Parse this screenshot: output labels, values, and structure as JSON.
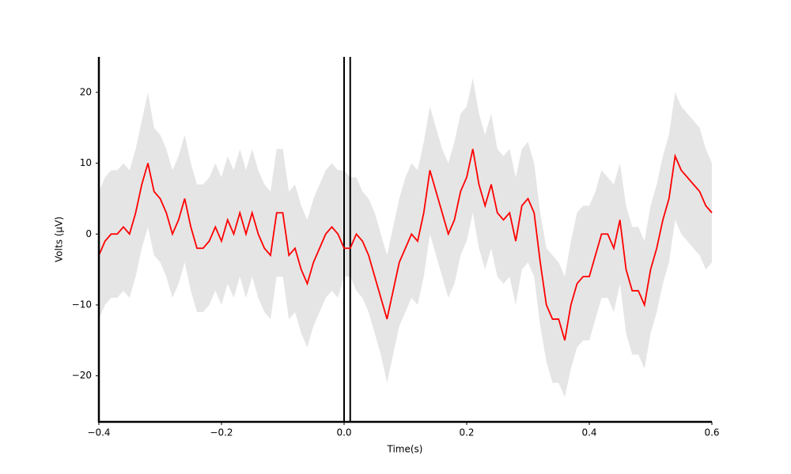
{
  "chart_data": {
    "type": "line",
    "xlabel": "Time(s)",
    "ylabel": "Volts (μV)",
    "x": [
      -0.4,
      -0.39,
      -0.38,
      -0.37,
      -0.36,
      -0.35,
      -0.34,
      -0.33,
      -0.32,
      -0.31,
      -0.3,
      -0.29,
      -0.28,
      -0.27,
      -0.26,
      -0.25,
      -0.24,
      -0.23,
      -0.22,
      -0.21,
      -0.2,
      -0.19,
      -0.18,
      -0.17,
      -0.16,
      -0.15,
      -0.14,
      -0.13,
      -0.12,
      -0.11,
      -0.1,
      -0.09,
      -0.08,
      -0.07,
      -0.06,
      -0.05,
      -0.04,
      -0.03,
      -0.02,
      -0.01,
      0,
      0.01,
      0.02,
      0.03,
      0.04,
      0.05,
      0.06,
      0.07,
      0.08,
      0.09,
      0.1,
      0.11,
      0.12,
      0.13,
      0.14,
      0.15,
      0.16,
      0.17,
      0.18,
      0.19,
      0.2,
      0.21,
      0.22,
      0.23,
      0.24,
      0.25,
      0.26,
      0.27,
      0.28,
      0.29,
      0.3,
      0.31,
      0.32,
      0.33,
      0.34,
      0.35,
      0.36,
      0.37,
      0.38,
      0.39,
      0.4,
      0.41,
      0.42,
      0.43,
      0.44,
      0.45,
      0.46,
      0.47,
      0.48,
      0.49,
      0.5,
      0.51,
      0.52,
      0.53,
      0.54,
      0.55,
      0.56,
      0.57,
      0.58,
      0.59,
      0.6
    ],
    "values": [
      -3,
      -1,
      0,
      0,
      1,
      0,
      3,
      7,
      10,
      6,
      5,
      3,
      0,
      2,
      5,
      1,
      -2,
      -2,
      -1,
      1,
      -1,
      2,
      0,
      3,
      0,
      3,
      0,
      -2,
      -3,
      3,
      3,
      -3,
      -2,
      -5,
      -7,
      -4,
      -2,
      0,
      1,
      0,
      -2,
      -2,
      0,
      -1,
      -3,
      -6,
      -9,
      -12,
      -8,
      -4,
      -2,
      0,
      -1,
      3,
      9,
      6,
      3,
      0,
      2,
      6,
      8,
      12,
      7,
      4,
      7,
      3,
      2,
      3,
      -1,
      4,
      5,
      3,
      -4,
      -10,
      -12,
      -12,
      -15,
      -10,
      -7,
      -6,
      -6,
      -3,
      0,
      0,
      -2,
      2,
      -5,
      -8,
      -8,
      -10,
      -5,
      -2,
      2,
      5,
      11,
      9,
      8,
      7,
      6,
      4,
      3
    ],
    "band_upper": [
      6,
      8,
      9,
      9,
      10,
      9,
      12,
      16,
      20,
      15,
      14,
      12,
      9,
      11,
      14,
      10,
      7,
      7,
      8,
      10,
      8,
      11,
      9,
      12,
      9,
      12,
      9,
      7,
      6,
      12,
      12,
      6,
      7,
      4,
      2,
      5,
      7,
      9,
      10,
      9,
      9,
      8,
      8,
      6,
      5,
      3,
      0,
      -3,
      1,
      5,
      8,
      10,
      9,
      13,
      18,
      15,
      12,
      10,
      13,
      17,
      18,
      22,
      17,
      14,
      17,
      12,
      11,
      12,
      8,
      12,
      13,
      10,
      3,
      -2,
      -3,
      -4,
      -6,
      -1,
      3,
      4,
      4,
      6,
      9,
      8,
      7,
      10,
      4,
      1,
      1,
      -1,
      4,
      7,
      11,
      14,
      20,
      18,
      17,
      16,
      15,
      12,
      10
    ],
    "band_lower": [
      -12,
      -10,
      -9,
      -9,
      -8,
      -9,
      -6,
      -2,
      1,
      -3,
      -4,
      -6,
      -9,
      -7,
      -4,
      -8,
      -11,
      -11,
      -10,
      -8,
      -10,
      -7,
      -9,
      -6,
      -9,
      -6,
      -9,
      -11,
      -12,
      -6,
      -6,
      -12,
      -11,
      -14,
      -16,
      -13,
      -11,
      -9,
      -8,
      -9,
      -6,
      -6,
      -8,
      -9,
      -11,
      -14,
      -17,
      -21,
      -17,
      -13,
      -11,
      -9,
      -10,
      -6,
      0,
      -3,
      -6,
      -9,
      -7,
      -3,
      -1,
      3,
      -2,
      -5,
      -2,
      -6,
      -7,
      -6,
      -10,
      -5,
      -4,
      -6,
      -13,
      -18,
      -21,
      -21,
      -23,
      -19,
      -16,
      -15,
      -15,
      -12,
      -9,
      -9,
      -11,
      -7,
      -14,
      -17,
      -17,
      -19,
      -14,
      -11,
      -7,
      -4,
      2,
      0,
      -1,
      -2,
      -3,
      -5,
      -4
    ],
    "color": "#ff0000",
    "band_color": "#e5e5e5",
    "vlines": [
      0,
      0.01
    ],
    "xlim": [
      -0.4,
      0.6
    ],
    "ylim": [
      -26.5,
      25
    ],
    "xticks": [
      {
        "value": -0.4,
        "label": "−0.4"
      },
      {
        "value": -0.2,
        "label": "−0.2"
      },
      {
        "value": 0,
        "label": "0.0"
      },
      0.2,
      0.4,
      0.6
    ],
    "yticks": [
      {
        "value": -20,
        "label": "−20"
      },
      {
        "value": -10,
        "label": "−10"
      },
      0,
      10,
      20
    ]
  }
}
